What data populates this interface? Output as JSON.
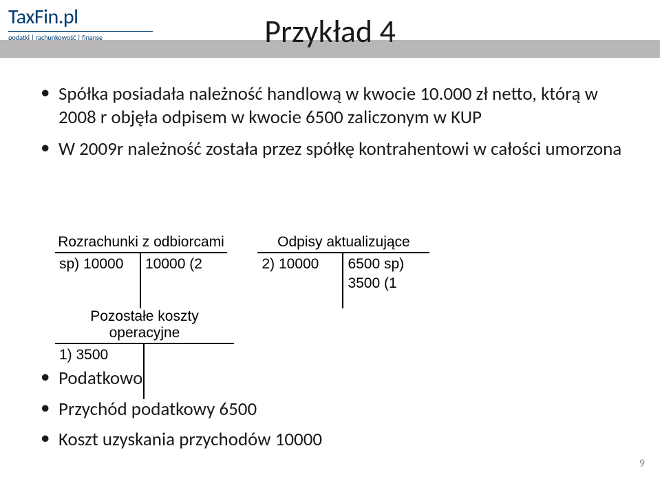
{
  "logo": {
    "brand": "TaxFin",
    "tld": ".pl",
    "tagline": "podatki | rachunkowość | finanse"
  },
  "title": "Przykład 4",
  "bullets_top": [
    "Spółka posiadała należność handlową w kwocie 10.000 zł netto, którą w 2008 r objęła odpisem w kwocie 6500 zaliczonym w KUP",
    "W 2009r należność została przez spółkę kontrahentowi w całości umorzona"
  ],
  "taccounts": [
    {
      "title": "Rozrachunki z odbiorcami",
      "left": [
        "sp) 10000"
      ],
      "right": [
        "10000  (2"
      ]
    },
    {
      "title": "Odpisy aktualizujące",
      "left": [
        "2) 10000"
      ],
      "right": [
        "6500  sp)",
        "3500 (1"
      ]
    },
    {
      "title": "Pozostałe koszty operacyjne",
      "left": [
        "1) 3500"
      ],
      "right": []
    }
  ],
  "bullets_bottom": [
    "Podatkowo",
    "Przychód podatkowy 6500",
    "Koszt uzyskania przychodów 10000"
  ],
  "page_number": "9"
}
